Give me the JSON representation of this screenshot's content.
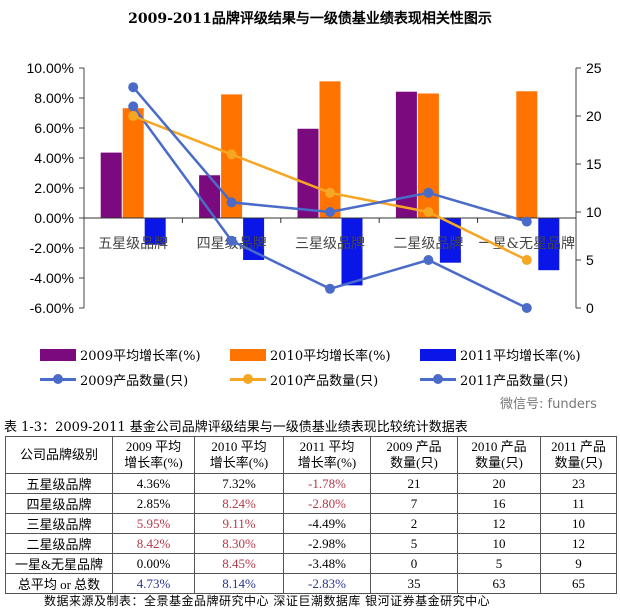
{
  "chart_data": {
    "type": "bar+line",
    "title": "2009-2011品牌评级结果与一级债基业绩表现相关性图示",
    "categories": [
      "五星级品牌",
      "四星级品牌",
      "三星级品牌",
      "二星级品牌",
      "一星&无星品牌"
    ],
    "y_left": {
      "range": [
        -6,
        10
      ],
      "ticks": [
        "10.00%",
        "8.00%",
        "6.00%",
        "4.00%",
        "2.00%",
        "0.00%",
        "-2.00%",
        "-4.00%",
        "-6.00%"
      ]
    },
    "y_right": {
      "range": [
        0,
        25
      ],
      "ticks": [
        "25",
        "20",
        "15",
        "10",
        "5",
        "0"
      ]
    },
    "bar_series": [
      {
        "name": "2009平均增长率(%)",
        "color": "#7a0a7e",
        "values": [
          4.36,
          2.85,
          5.95,
          8.42,
          0.0
        ]
      },
      {
        "name": "2010平均增长率(%)",
        "color": "#ff7300",
        "values": [
          7.32,
          8.24,
          9.11,
          8.3,
          8.45
        ]
      },
      {
        "name": "2011平均增长率(%)",
        "color": "#0a16e8",
        "values": [
          -1.78,
          -2.8,
          -4.49,
          -2.98,
          -3.48
        ]
      }
    ],
    "line_series": [
      {
        "name": "2009产品数量(只)",
        "color": "#4a6cc8",
        "values": [
          21,
          7,
          2,
          5,
          0
        ]
      },
      {
        "name": "2010产品数量(只)",
        "color": "#f5a623",
        "values": [
          20,
          16,
          12,
          10,
          5
        ]
      },
      {
        "name": "2011产品数量(只)",
        "color": "#4a6cc8",
        "values": [
          23,
          11,
          10,
          12,
          9
        ]
      }
    ],
    "legend": "bottom",
    "grid": false
  },
  "table": {
    "caption": "表 1-3：2009-2011 基金公司品牌评级结果与一级债基业绩表现比较统计数据表",
    "headers": [
      [
        "公司品牌级别",
        ""
      ],
      [
        "2009 平均",
        "增长率(%)"
      ],
      [
        "2010 平均",
        "增长率(%)"
      ],
      [
        "2011 平均",
        "增长率(%)"
      ],
      [
        "2009 产品",
        "数量(只)"
      ],
      [
        "2010 产品",
        "数量(只)"
      ],
      [
        "2011 产品",
        "数量(只)"
      ]
    ],
    "rows": [
      {
        "cells": [
          "五星级品牌",
          "4.36%",
          "7.32%",
          "-1.78%",
          "21",
          "20",
          "23"
        ],
        "red": [
          3
        ],
        "blue": []
      },
      {
        "cells": [
          "四星级品牌",
          "2.85%",
          "8.24%",
          "-2.80%",
          "7",
          "16",
          "11"
        ],
        "red": [
          2,
          3
        ],
        "blue": []
      },
      {
        "cells": [
          "三星级品牌",
          "5.95%",
          "9.11%",
          "-4.49%",
          "2",
          "12",
          "10"
        ],
        "red": [
          1,
          2
        ],
        "blue": []
      },
      {
        "cells": [
          "二星级品牌",
          "8.42%",
          "8.30%",
          "-2.98%",
          "5",
          "10",
          "12"
        ],
        "red": [
          1,
          2
        ],
        "blue": []
      },
      {
        "cells": [
          "一星&无星品牌",
          "0.00%",
          "8.45%",
          "-3.48%",
          "0",
          "5",
          "9"
        ],
        "red": [
          2
        ],
        "blue": []
      },
      {
        "cells": [
          "总平均 or 总数",
          "4.73%",
          "8.14%",
          "-2.83%",
          "35",
          "63",
          "65"
        ],
        "red": [],
        "blue": [
          1,
          2,
          3
        ]
      }
    ],
    "footer": "数据来源及制表：全景基金品牌研究中心 深证巨潮数据库 银河证券基金研究中心"
  },
  "watermark": "微信号: funders"
}
